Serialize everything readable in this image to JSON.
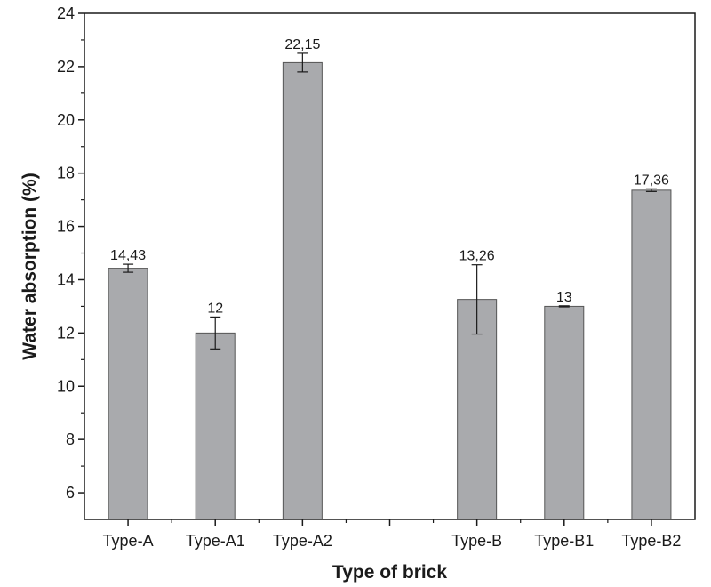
{
  "chart_data": {
    "type": "bar",
    "xlabel": "Type of brick",
    "ylabel": "Water absorption (%)",
    "ylim": [
      5,
      24
    ],
    "yticks": [
      6,
      8,
      10,
      12,
      14,
      16,
      18,
      20,
      22,
      24
    ],
    "categories": [
      "Type-A",
      "Type-A1",
      "Type-A2",
      "",
      "Type-B",
      "Type-B1",
      "Type-B2"
    ],
    "values": [
      14.43,
      12,
      22.15,
      null,
      13.26,
      13,
      17.36
    ],
    "errors": [
      0.15,
      0.6,
      0.35,
      null,
      1.3,
      0.02,
      0.05
    ],
    "data_labels": [
      "14,43",
      "12",
      "22,15",
      "",
      "13,26",
      "13",
      "17,36"
    ],
    "bar_color": "#a9aaad",
    "grid": false
  }
}
